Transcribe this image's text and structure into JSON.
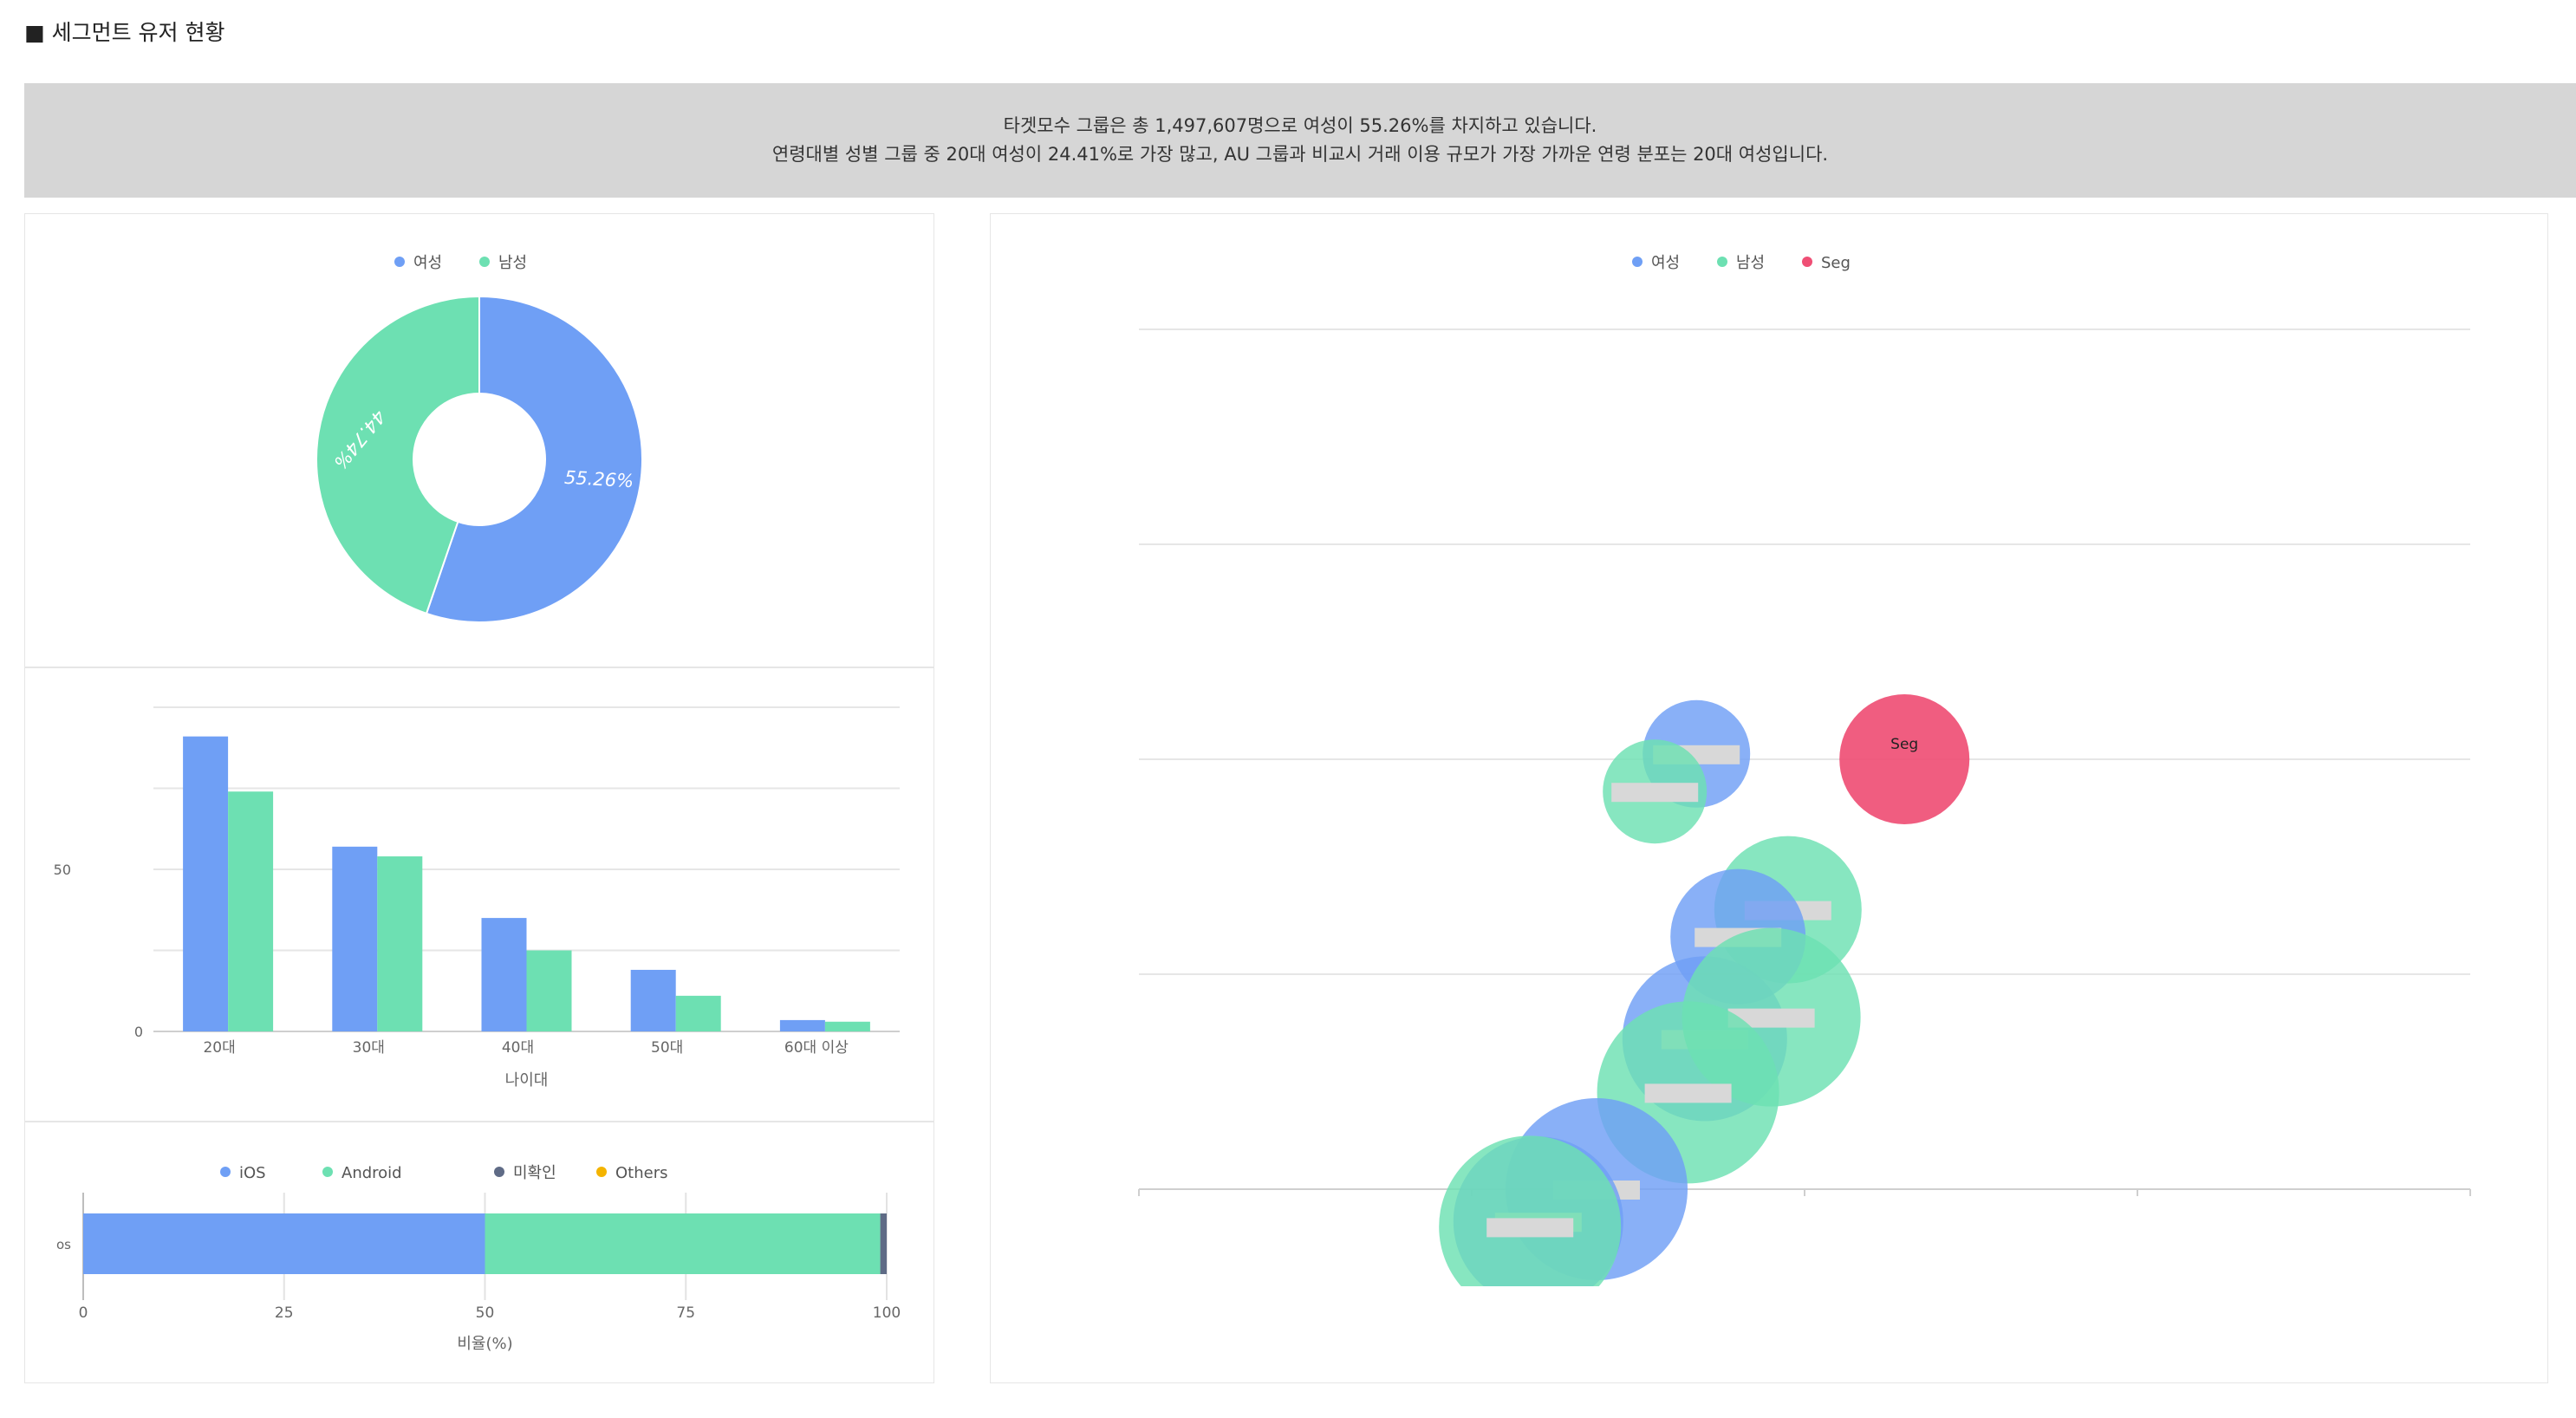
{
  "page": {
    "section_title": "■ 세그먼트 유저 현황",
    "summary_line1": "타겟모수 그룹은 총 1,497,607명으로 여성이 55.26%를 차지하고 있습니다.",
    "summary_line2": "연령대별 성별 그룹 중 20대 여성이 24.41%로 가장 많고, AU 그룹과 비교시 거래 이용 규모가 가장 가까운 연령 분포는 20대 여성입니다."
  },
  "colors": {
    "female": "#6f9ff5",
    "male": "#6de0b2",
    "seg": "#ef4f75",
    "unknown": "#5f6b86",
    "others": "#f4b400"
  },
  "chart_data": [
    {
      "type": "pie",
      "legend": [
        "여성",
        "남성"
      ],
      "slices": [
        {
          "name": "여성",
          "value": 55.26,
          "label": "55.26%"
        },
        {
          "name": "남성",
          "value": 44.74,
          "label": "44.74%"
        }
      ]
    },
    {
      "type": "bar",
      "categories": [
        "20대",
        "30대",
        "40대",
        "50대",
        "60대 이상"
      ],
      "series": [
        {
          "name": "여성",
          "values": [
            91,
            57,
            35,
            19,
            3.5
          ]
        },
        {
          "name": "남성",
          "values": [
            74,
            54,
            25,
            11,
            3
          ]
        }
      ],
      "ylabel": "",
      "xlabel": "나이대",
      "yticks": [
        {
          "value": 0,
          "label": "0"
        },
        {
          "value": 50,
          "label": "50"
        }
      ],
      "ylim": [
        0,
        100
      ]
    },
    {
      "type": "bar",
      "orientation": "horizontal",
      "stacked": true,
      "legend": [
        "iOS",
        "Android",
        "미확인",
        "Others"
      ],
      "category": "os",
      "series": [
        {
          "name": "iOS",
          "value": 50
        },
        {
          "name": "Android",
          "value": 49.2
        },
        {
          "name": "미확인",
          "value": 0.8
        },
        {
          "name": "Others",
          "value": 0
        }
      ],
      "xticks": [
        "0",
        "25",
        "50",
        "75",
        "100"
      ],
      "xlim": [
        0,
        100
      ],
      "xlabel": "비율(%)"
    },
    {
      "type": "scatter",
      "legend": [
        "여성",
        "남성",
        "Seg"
      ],
      "xlim": [
        0,
        8
      ],
      "ylim": [
        0,
        8
      ],
      "grid": true,
      "points": [
        {
          "group": "여성",
          "x": 3.35,
          "y": 4.05,
          "r": 62,
          "label": ""
        },
        {
          "group": "남성",
          "x": 3.1,
          "y": 3.7,
          "r": 60,
          "label": ""
        },
        {
          "group": "Seg",
          "x": 4.6,
          "y": 4.0,
          "r": 75,
          "label": "Seg"
        },
        {
          "group": "남성",
          "x": 3.9,
          "y": 2.6,
          "r": 85,
          "label": ""
        },
        {
          "group": "여성",
          "x": 3.6,
          "y": 2.35,
          "r": 78,
          "label": ""
        },
        {
          "group": "여성",
          "x": 3.4,
          "y": 1.4,
          "r": 95,
          "label": ""
        },
        {
          "group": "남성",
          "x": 3.8,
          "y": 1.6,
          "r": 103,
          "label": ""
        },
        {
          "group": "남성",
          "x": 3.3,
          "y": 0.9,
          "r": 105,
          "label": ""
        },
        {
          "group": "여성",
          "x": 2.75,
          "y": 0.0,
          "r": 105,
          "label": ""
        },
        {
          "group": "여성",
          "x": 2.4,
          "y": -0.3,
          "r": 98,
          "label": ""
        },
        {
          "group": "남성",
          "x": 2.35,
          "y": -0.35,
          "r": 105,
          "label": ""
        }
      ]
    }
  ]
}
